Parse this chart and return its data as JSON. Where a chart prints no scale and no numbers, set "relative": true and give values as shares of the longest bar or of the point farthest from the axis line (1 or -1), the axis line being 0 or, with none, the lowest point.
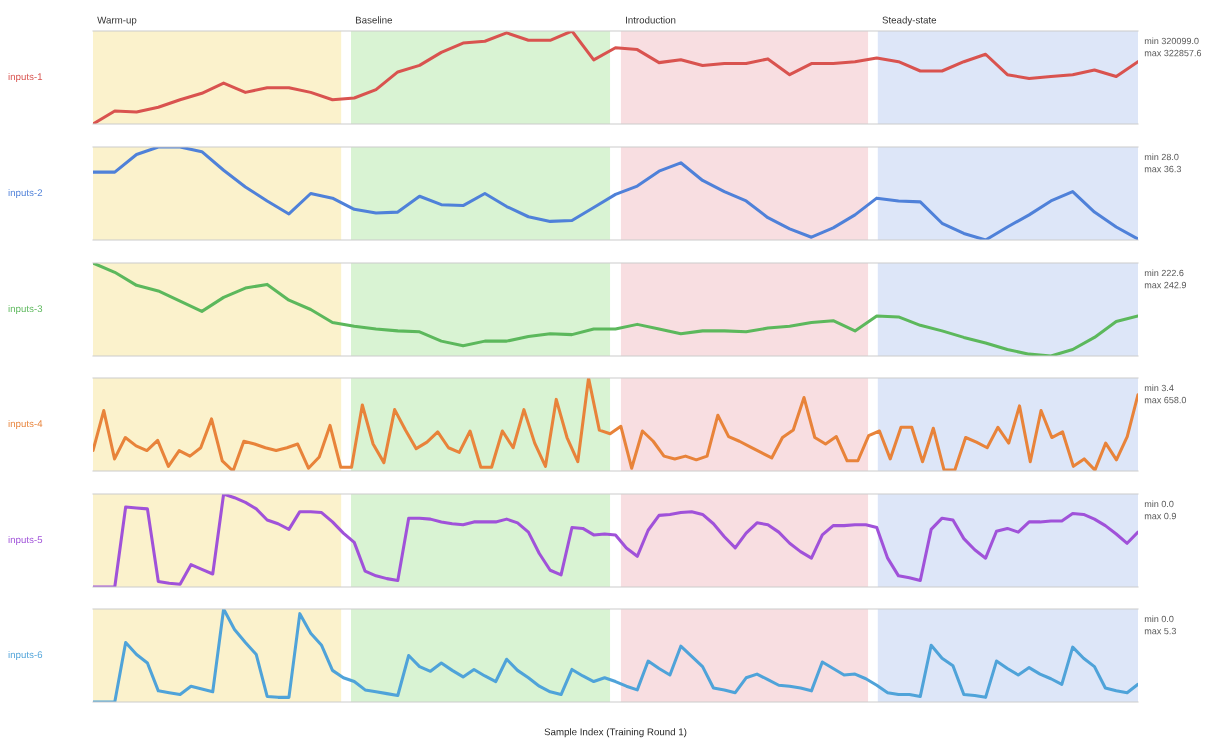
{
  "chart_data": [
    {
      "type": "line",
      "relative": true,
      "ylabel": "inputs-1",
      "line_style": "solid",
      "categories": [
        null,
        null,
        null,
        null,
        null,
        null,
        null,
        null,
        null,
        null,
        null,
        null,
        null,
        null,
        null,
        null,
        null,
        null,
        null,
        null,
        null,
        null,
        null,
        null,
        null,
        null,
        null,
        null,
        null,
        null,
        null,
        null,
        null,
        null,
        null,
        null,
        null,
        null,
        null,
        null,
        null,
        null,
        null,
        null,
        null,
        null,
        null,
        null,
        null
      ],
      "annotations": [
        "Warm-up",
        "Baseline",
        "Introduction",
        "Steady-state",
        "min 320099.0",
        "max 322857.6"
      ],
      "series": [
        {
          "color": "#d9534f",
          "values": [
            0,
            0.14,
            0.13,
            0.18,
            0.26,
            0.33,
            0.44,
            0.34,
            0.39,
            0.39,
            0.34,
            0.26,
            0.28,
            0.37,
            0.56,
            0.63,
            0.77,
            0.87,
            0.89,
            0.98,
            0.9,
            0.9,
            1,
            0.69,
            0.82,
            0.8,
            0.66,
            0.69,
            0.63,
            0.65,
            0.65,
            0.7,
            0.53,
            0.65,
            0.65,
            0.67,
            0.71,
            0.67,
            0.57,
            0.57,
            0.67,
            0.75,
            0.53,
            0.49,
            0.51,
            0.53,
            0.58,
            0.51,
            0.67
          ]
        }
      ]
    },
    {
      "type": "line",
      "relative": true,
      "ylabel": "inputs-2",
      "line_style": "solid",
      "categories": [
        null,
        null,
        null,
        null,
        null,
        null,
        null,
        null,
        null,
        null,
        null,
        null,
        null,
        null,
        null,
        null,
        null,
        null,
        null,
        null,
        null,
        null,
        null,
        null,
        null,
        null,
        null,
        null,
        null,
        null,
        null,
        null,
        null,
        null,
        null,
        null,
        null,
        null,
        null,
        null,
        null,
        null,
        null,
        null,
        null,
        null,
        null,
        null,
        null
      ],
      "annotations": [
        "min 28.0",
        "max 36.3"
      ],
      "series": [
        {
          "color": "#4f81d9",
          "values": [
            0.73,
            0.73,
            0.92,
            1,
            1,
            0.95,
            0.75,
            0.57,
            0.42,
            0.28,
            0.5,
            0.45,
            0.33,
            0.29,
            0.3,
            0.47,
            0.38,
            0.37,
            0.5,
            0.36,
            0.25,
            0.2,
            0.21,
            0.35,
            0.49,
            0.58,
            0.74,
            0.83,
            0.64,
            0.52,
            0.42,
            0.24,
            0.12,
            0.03,
            0.13,
            0.27,
            0.45,
            0.42,
            0.41,
            0.18,
            0.07,
            0,
            0.14,
            0.27,
            0.42,
            0.52,
            0.3,
            0.14,
            0.01
          ]
        }
      ]
    },
    {
      "type": "line",
      "relative": true,
      "ylabel": "inputs-3",
      "line_style": "solid",
      "categories": [
        null,
        null,
        null,
        null,
        null,
        null,
        null,
        null,
        null,
        null,
        null,
        null,
        null,
        null,
        null,
        null,
        null,
        null,
        null,
        null,
        null,
        null,
        null,
        null,
        null,
        null,
        null,
        null,
        null,
        null,
        null,
        null,
        null,
        null,
        null,
        null,
        null,
        null,
        null,
        null,
        null,
        null,
        null,
        null,
        null,
        null,
        null,
        null,
        null
      ],
      "annotations": [
        "min 222.6",
        "max 242.9"
      ],
      "series": [
        {
          "color": "#5cb85c",
          "values": [
            1,
            0.9,
            0.76,
            0.7,
            0.59,
            0.48,
            0.63,
            0.73,
            0.77,
            0.6,
            0.5,
            0.36,
            0.32,
            0.29,
            0.27,
            0.26,
            0.16,
            0.11,
            0.16,
            0.16,
            0.21,
            0.24,
            0.23,
            0.29,
            0.29,
            0.34,
            0.29,
            0.24,
            0.27,
            0.27,
            0.26,
            0.3,
            0.32,
            0.36,
            0.38,
            0.27,
            0.43,
            0.42,
            0.33,
            0.27,
            0.2,
            0.14,
            0.07,
            0.02,
            0,
            0.07,
            0.2,
            0.37,
            0.43
          ]
        }
      ]
    },
    {
      "type": "line",
      "relative": true,
      "ylabel": "inputs-4",
      "line_style": "solid",
      "categories": [
        null,
        null,
        null,
        null,
        null,
        null,
        null,
        null,
        null,
        null,
        null,
        null,
        null,
        null,
        null,
        null,
        null,
        null,
        null,
        null,
        null,
        null,
        null,
        null,
        null,
        null,
        null,
        null,
        null,
        null,
        null,
        null,
        null,
        null,
        null,
        null,
        null,
        null,
        null,
        null,
        null,
        null,
        null,
        null,
        null,
        null,
        null,
        null,
        null,
        null,
        null,
        null,
        null,
        null,
        null,
        null,
        null,
        null,
        null,
        null,
        null,
        null,
        null,
        null,
        null,
        null,
        null,
        null,
        null,
        null,
        null,
        null,
        null,
        null,
        null,
        null,
        null,
        null,
        null,
        null,
        null,
        null,
        null,
        null,
        null,
        null,
        null,
        null,
        null,
        null,
        null,
        null,
        null,
        null,
        null,
        null,
        null,
        null
      ],
      "annotations": [
        "min 3.4",
        "max 658.0"
      ],
      "series": [
        {
          "color": "#e8833a",
          "values": [
            0.22,
            0.65,
            0.13,
            0.36,
            0.27,
            0.22,
            0.33,
            0.05,
            0.22,
            0.16,
            0.25,
            0.56,
            0.11,
            0,
            0.32,
            0.29,
            0.25,
            0.22,
            0.25,
            0.29,
            0.03,
            0.15,
            0.49,
            0.04,
            0.04,
            0.71,
            0.29,
            0.09,
            0.66,
            0.44,
            0.24,
            0.31,
            0.42,
            0.25,
            0.2,
            0.43,
            0.04,
            0.04,
            0.43,
            0.25,
            0.66,
            0.3,
            0.05,
            0.77,
            0.36,
            0.1,
            1,
            0.44,
            0.4,
            0.48,
            0.03,
            0.43,
            0.32,
            0.16,
            0.13,
            0.16,
            0.12,
            0.16,
            0.6,
            0.37,
            0.32,
            0.26,
            0.2,
            0.14,
            0.36,
            0.44,
            0.79,
            0.36,
            0.29,
            0.37,
            0.11,
            0.11,
            0.38,
            0.43,
            0.13,
            0.47,
            0.47,
            0.1,
            0.46,
            0.01,
            0.01,
            0.36,
            0.31,
            0.25,
            0.47,
            0.3,
            0.7,
            0.1,
            0.65,
            0.36,
            0.42,
            0.05,
            0.13,
            0.01,
            0.3,
            0.12,
            0.37,
            0.82
          ]
        }
      ]
    },
    {
      "type": "line",
      "relative": true,
      "ylabel": "inputs-5",
      "line_style": "solid",
      "categories": [
        null,
        null,
        null,
        null,
        null,
        null,
        null,
        null,
        null,
        null,
        null,
        null,
        null,
        null,
        null,
        null,
        null,
        null,
        null,
        null,
        null,
        null,
        null,
        null,
        null,
        null,
        null,
        null,
        null,
        null,
        null,
        null,
        null,
        null,
        null,
        null,
        null,
        null,
        null,
        null,
        null,
        null,
        null,
        null,
        null,
        null,
        null,
        null,
        null,
        null,
        null,
        null,
        null,
        null,
        null,
        null,
        null,
        null,
        null,
        null,
        null,
        null,
        null,
        null,
        null,
        null,
        null,
        null,
        null,
        null,
        null,
        null,
        null,
        null,
        null,
        null,
        null,
        null,
        null,
        null,
        null,
        null,
        null,
        null,
        null,
        null,
        null,
        null,
        null,
        null,
        null,
        null,
        null,
        null,
        null,
        null,
        null
      ],
      "annotations": [
        "min 0.0",
        "max 0.9"
      ],
      "series": [
        {
          "color": "#a052d9",
          "values": [
            0,
            0,
            0,
            0.86,
            0.85,
            0.84,
            0.06,
            0.04,
            0.03,
            0.24,
            0.19,
            0.14,
            1,
            0.96,
            0.91,
            0.84,
            0.72,
            0.68,
            0.62,
            0.81,
            0.81,
            0.8,
            0.7,
            0.58,
            0.48,
            0.17,
            0.12,
            0.09,
            0.07,
            0.74,
            0.74,
            0.73,
            0.7,
            0.68,
            0.67,
            0.7,
            0.7,
            0.7,
            0.73,
            0.69,
            0.59,
            0.36,
            0.18,
            0.13,
            0.64,
            0.63,
            0.56,
            0.57,
            0.56,
            0.42,
            0.33,
            0.61,
            0.77,
            0.78,
            0.8,
            0.81,
            0.78,
            0.68,
            0.54,
            0.42,
            0.58,
            0.69,
            0.67,
            0.59,
            0.47,
            0.38,
            0.31,
            0.56,
            0.66,
            0.66,
            0.67,
            0.67,
            0.64,
            0.31,
            0.12,
            0.1,
            0.07,
            0.62,
            0.74,
            0.72,
            0.52,
            0.4,
            0.31,
            0.6,
            0.63,
            0.59,
            0.7,
            0.7,
            0.71,
            0.71,
            0.79,
            0.78,
            0.73,
            0.66,
            0.57,
            0.47,
            0.59
          ]
        }
      ]
    },
    {
      "type": "line",
      "relative": true,
      "ylabel": "inputs-6",
      "xlabel": "Sample Index (Training Round 1)",
      "line_style": "solid",
      "categories": [
        null,
        null,
        null,
        null,
        null,
        null,
        null,
        null,
        null,
        null,
        null,
        null,
        null,
        null,
        null,
        null,
        null,
        null,
        null,
        null,
        null,
        null,
        null,
        null,
        null,
        null,
        null,
        null,
        null,
        null,
        null,
        null,
        null,
        null,
        null,
        null,
        null,
        null,
        null,
        null,
        null,
        null,
        null,
        null,
        null,
        null,
        null,
        null,
        null,
        null,
        null,
        null,
        null,
        null,
        null,
        null,
        null,
        null,
        null,
        null,
        null,
        null,
        null,
        null,
        null,
        null,
        null,
        null,
        null,
        null,
        null,
        null,
        null,
        null,
        null,
        null,
        null,
        null,
        null,
        null,
        null,
        null,
        null,
        null,
        null,
        null,
        null,
        null,
        null,
        null,
        null,
        null,
        null,
        null,
        null,
        null,
        null
      ],
      "annotations": [
        "min 0.0",
        "max 5.3"
      ],
      "series": [
        {
          "color": "#4fa3d9",
          "values": [
            0,
            0,
            0,
            0.64,
            0.51,
            0.42,
            0.12,
            0.1,
            0.08,
            0.17,
            0.14,
            0.11,
            1,
            0.78,
            0.64,
            0.51,
            0.06,
            0.05,
            0.05,
            0.95,
            0.74,
            0.61,
            0.34,
            0.26,
            0.22,
            0.13,
            0.11,
            0.09,
            0.07,
            0.5,
            0.38,
            0.33,
            0.42,
            0.34,
            0.27,
            0.35,
            0.28,
            0.22,
            0.46,
            0.34,
            0.26,
            0.17,
            0.11,
            0.08,
            0.35,
            0.28,
            0.22,
            0.26,
            0.22,
            0.17,
            0.13,
            0.44,
            0.36,
            0.29,
            0.6,
            0.49,
            0.38,
            0.15,
            0.13,
            0.1,
            0.26,
            0.3,
            0.24,
            0.18,
            0.17,
            0.15,
            0.12,
            0.43,
            0.36,
            0.29,
            0.3,
            0.25,
            0.18,
            0.1,
            0.08,
            0.08,
            0.06,
            0.61,
            0.47,
            0.39,
            0.08,
            0.07,
            0.05,
            0.44,
            0.36,
            0.29,
            0.37,
            0.3,
            0.25,
            0.19,
            0.59,
            0.47,
            0.38,
            0.15,
            0.12,
            0.1,
            0.19
          ]
        }
      ]
    }
  ]
}
